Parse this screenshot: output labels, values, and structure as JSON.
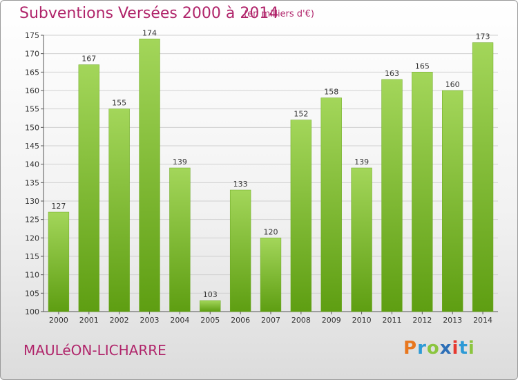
{
  "title": "Subventions Versées 2000 à 2014",
  "subtitle": "(en milliers d'€)",
  "commune": "MAULéON-LICHARRE",
  "logo": {
    "text": "Proxiti",
    "letters": [
      "P",
      "r",
      "o",
      "x",
      "i",
      "t",
      "i"
    ],
    "colors": [
      "#e8771e",
      "#2d9ad6",
      "#8bc53f",
      "#2d6fb7",
      "#e6382f",
      "#2d9ad6",
      "#8bc53f"
    ]
  },
  "colors": {
    "bar_light": "#a3d65a",
    "bar_dark": "#5e9e12",
    "title": "#b0246a"
  },
  "chart_data": {
    "type": "bar",
    "categories": [
      "2000",
      "2001",
      "2002",
      "2003",
      "2004",
      "2005",
      "2006",
      "2007",
      "2008",
      "2009",
      "2010",
      "2011",
      "2012",
      "2013",
      "2014"
    ],
    "values": [
      127,
      167,
      155,
      174,
      139,
      103,
      133,
      120,
      152,
      158,
      139,
      163,
      165,
      160,
      173
    ],
    "title": "Subventions Versées 2000 à 2014",
    "subtitle": "(en milliers d'€)",
    "ylim": [
      100,
      175
    ],
    "yticks": [
      100,
      105,
      110,
      115,
      120,
      125,
      130,
      135,
      140,
      145,
      150,
      155,
      160,
      165,
      170,
      175
    ],
    "grid": true,
    "data_labels": true
  }
}
